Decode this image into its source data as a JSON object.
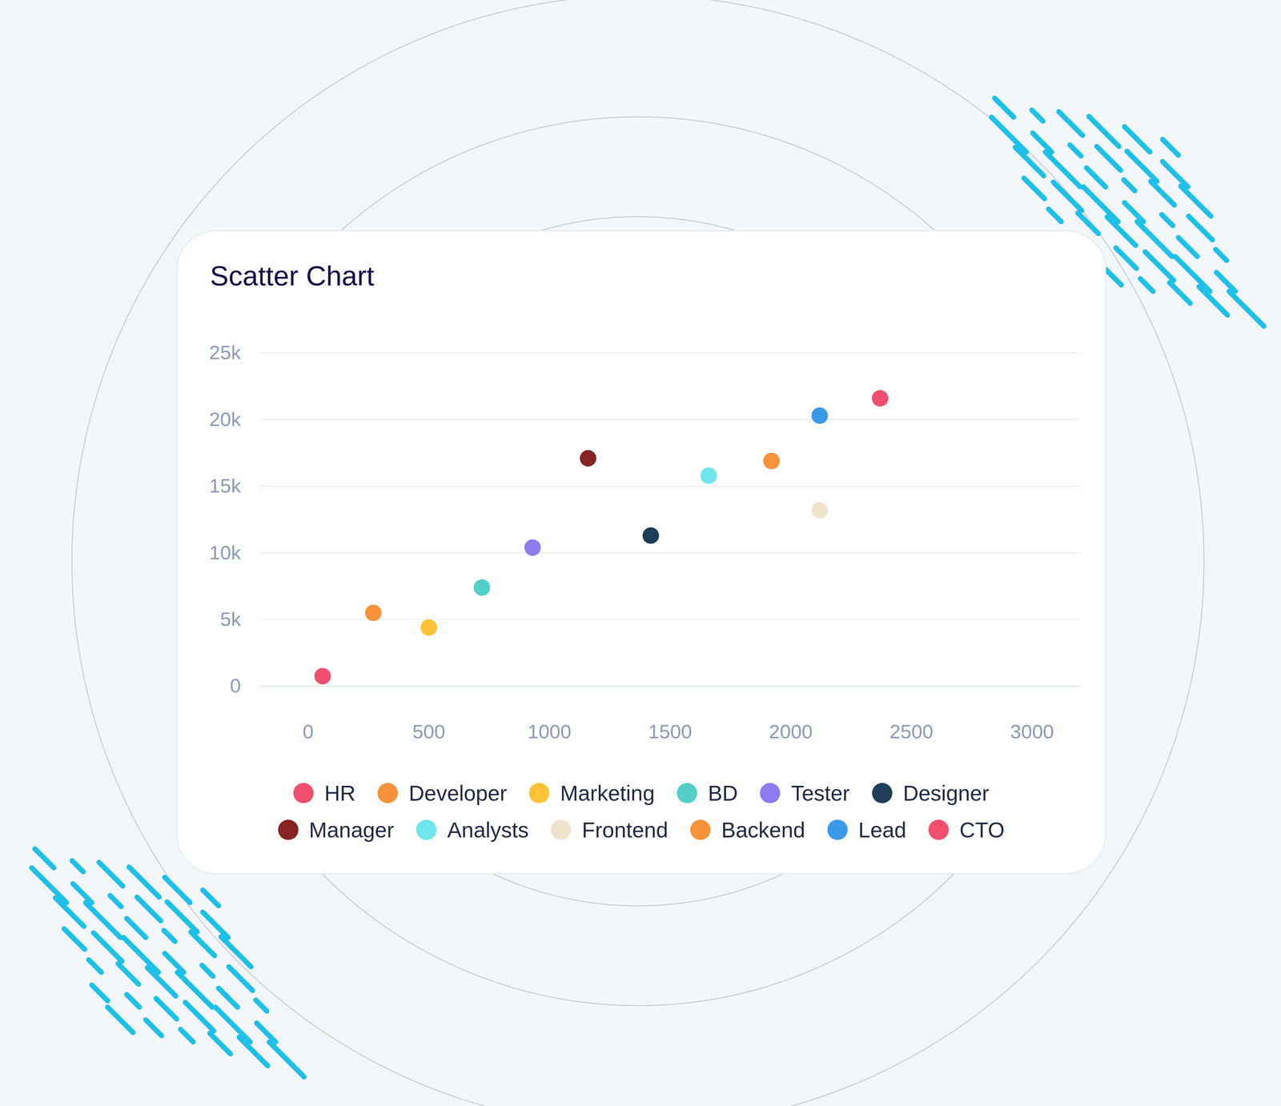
{
  "chart_data": {
    "type": "scatter",
    "title": "Scatter Chart",
    "xlim": [
      -200,
      3200
    ],
    "xticks": [
      0,
      500,
      1000,
      1500,
      2000,
      2500,
      3000
    ],
    "ylim": [
      0,
      25000
    ],
    "yticks": [
      0,
      {
        "value": 5000,
        "label": "5k"
      },
      {
        "value": 10000,
        "label": "10k"
      },
      {
        "value": 15000,
        "label": "15k"
      },
      {
        "value": 20000,
        "label": "20k"
      },
      {
        "value": 25000,
        "label": "25k"
      }
    ],
    "grid": true,
    "legend": "bottom",
    "series": [
      {
        "name": "HR",
        "color": "#f0506e",
        "x": [
          60
        ],
        "y": [
          750
        ]
      },
      {
        "name": "Developer",
        "color": "#f7923a",
        "x": [
          270
        ],
        "y": [
          5500
        ]
      },
      {
        "name": "Marketing",
        "color": "#fdc236",
        "x": [
          500
        ],
        "y": [
          4400
        ]
      },
      {
        "name": "BD",
        "color": "#52cfc7",
        "x": [
          720
        ],
        "y": [
          7400
        ]
      },
      {
        "name": "Tester",
        "color": "#8c7cf0",
        "x": [
          930
        ],
        "y": [
          10400
        ]
      },
      {
        "name": "Designer",
        "color": "#1e3d59",
        "x": [
          1420
        ],
        "y": [
          11300
        ]
      },
      {
        "name": "Manager",
        "color": "#862323",
        "x": [
          1160
        ],
        "y": [
          17100
        ]
      },
      {
        "name": "Analysts",
        "color": "#6fe6ec",
        "x": [
          1660
        ],
        "y": [
          15800
        ]
      },
      {
        "name": "Frontend",
        "color": "#efe3cf",
        "x": [
          2120
        ],
        "y": [
          13200
        ]
      },
      {
        "name": "Backend",
        "color": "#f7923a",
        "x": [
          1920
        ],
        "y": [
          16900
        ]
      },
      {
        "name": "Lead",
        "color": "#3b9ae8",
        "x": [
          2120
        ],
        "y": [
          20300
        ]
      },
      {
        "name": "CTO",
        "color": "#f0506e",
        "x": [
          2370
        ],
        "y": [
          21600
        ]
      }
    ]
  }
}
